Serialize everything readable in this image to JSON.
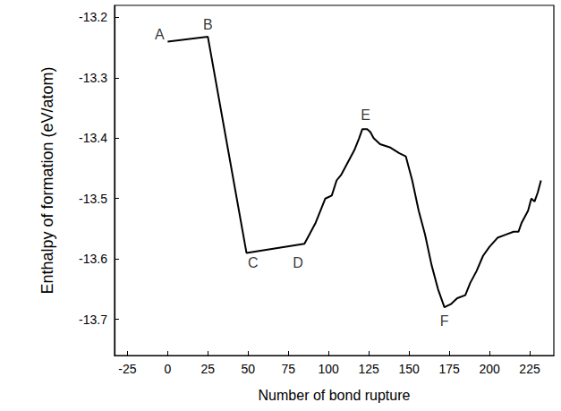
{
  "chart_data": {
    "type": "line",
    "x_label": "Number of bond rupture",
    "y_label": "Enthalpy of formation (eV/atom)",
    "x": [
      0,
      25,
      49,
      85,
      88,
      92,
      95,
      98,
      102,
      105,
      108,
      112,
      116,
      119,
      121,
      124,
      126,
      128,
      132,
      138,
      144,
      148,
      152,
      156,
      160,
      164,
      168,
      172,
      176,
      180,
      185,
      188,
      192,
      196,
      200,
      205,
      210,
      215,
      218,
      220,
      224,
      226,
      228,
      230,
      232
    ],
    "values": [
      -13.24,
      -13.232,
      -13.59,
      -13.575,
      -13.56,
      -13.54,
      -13.52,
      -13.5,
      -13.495,
      -13.47,
      -13.46,
      -13.44,
      -13.42,
      -13.4,
      -13.385,
      -13.385,
      -13.39,
      -13.4,
      -13.41,
      -13.415,
      -13.425,
      -13.43,
      -13.47,
      -13.52,
      -13.56,
      -13.61,
      -13.65,
      -13.68,
      -13.675,
      -13.665,
      -13.66,
      -13.64,
      -13.62,
      -13.595,
      -13.58,
      -13.565,
      -13.56,
      -13.555,
      -13.555,
      -13.54,
      -13.52,
      -13.5,
      -13.505,
      -13.49,
      -13.47
    ],
    "color": "#000000",
    "xlim": [
      -33,
      240
    ],
    "xticks": [
      -25,
      0,
      25,
      50,
      75,
      100,
      125,
      150,
      175,
      200,
      225
    ],
    "ylim": [
      -13.76,
      -13.18
    ],
    "yticks": [
      -13.7,
      -13.6,
      -13.5,
      -13.4,
      -13.3,
      -13.2
    ],
    "grid": false,
    "annotations": [
      {
        "text": "A",
        "x": -5,
        "y": -13.228
      },
      {
        "text": "B",
        "x": 25,
        "y": -13.212
      },
      {
        "text": "C",
        "x": 53,
        "y": -13.607
      },
      {
        "text": "D",
        "x": 81,
        "y": -13.607
      },
      {
        "text": "E",
        "x": 123,
        "y": -13.362
      },
      {
        "text": "F",
        "x": 172,
        "y": -13.703
      }
    ]
  }
}
